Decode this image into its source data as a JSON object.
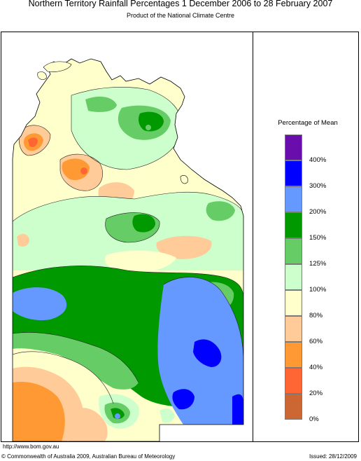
{
  "header": {
    "title": "Northern Territory Rainfall Percentages 1 December 2006 to 28 February 2007",
    "subtitle": "Product of the National Climate Centre"
  },
  "legend": {
    "title": "Percentage of Mean",
    "bands": [
      {
        "color": "#6a0dad"
      },
      {
        "color": "#0000ff"
      },
      {
        "color": "#6699ff"
      },
      {
        "color": "#009900"
      },
      {
        "color": "#66cc66"
      },
      {
        "color": "#ccffcc"
      },
      {
        "color": "#ffffcc"
      },
      {
        "color": "#ffcc99"
      },
      {
        "color": "#ff9933"
      },
      {
        "color": "#ff6633"
      },
      {
        "color": "#cc6633"
      }
    ],
    "tick_labels": [
      "400%",
      "300%",
      "200%",
      "150%",
      "125%",
      "100%",
      "80%",
      "60%",
      "40%",
      "20%",
      "0%"
    ]
  },
  "footer": {
    "url": "http://www.bom.gov.au",
    "copyright": "© Commonwealth of Australia 2009, Australian Bureau of Meteorology",
    "issued": "Issued: 28/12/2009"
  }
}
